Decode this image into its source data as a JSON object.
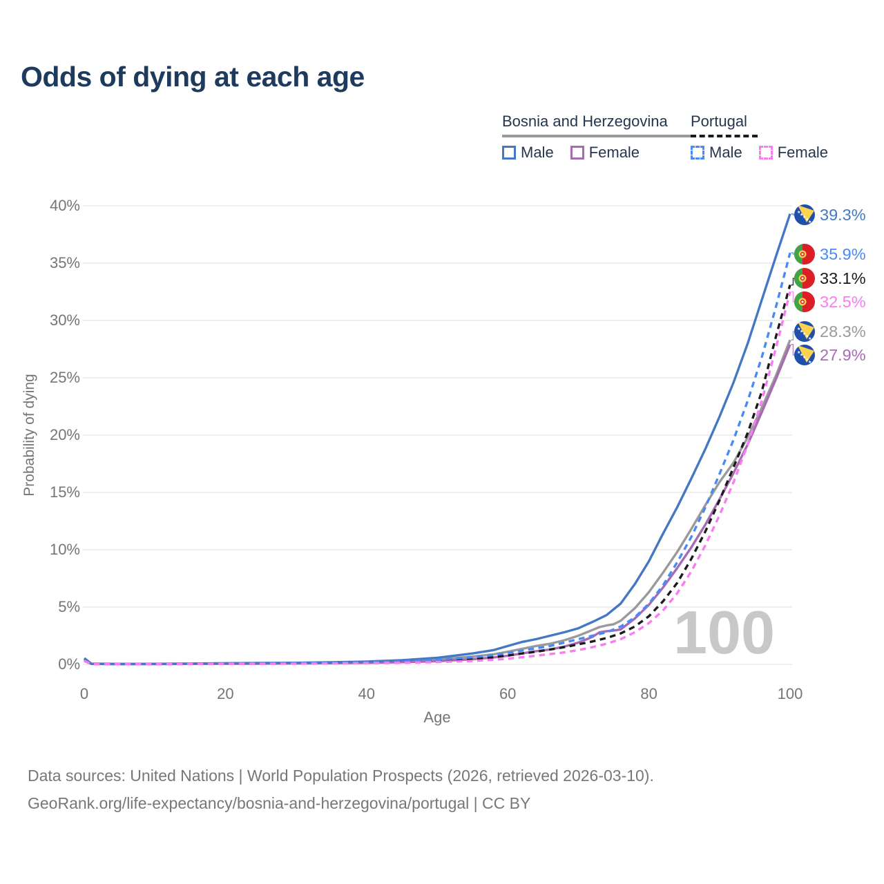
{
  "title": "Odds of dying at each age",
  "legend": {
    "groups": [
      {
        "country": "Bosnia and Herzegovina",
        "line_style": "solid",
        "line_color": "#9a9a9a",
        "items": [
          {
            "label": "Male",
            "color": "#4478c4",
            "dashed": false
          },
          {
            "label": "Female",
            "color": "#a76bb2",
            "dashed": false
          }
        ]
      },
      {
        "country": "Portugal",
        "line_style": "dashed",
        "line_color": "#1b1b1b",
        "items": [
          {
            "label": "Male",
            "color": "#4a8af4",
            "dashed": true
          },
          {
            "label": "Female",
            "color": "#f97cf1",
            "dashed": true
          }
        ]
      }
    ]
  },
  "chart_data": {
    "type": "line",
    "title": "Odds of dying at each age",
    "xlabel": "Age",
    "ylabel": "Probability of dying",
    "xlim": [
      0,
      100
    ],
    "ylim": [
      0,
      40
    ],
    "grid": "horizontal",
    "watermark": "100",
    "xticks": [
      {
        "label": "0",
        "value": 0
      },
      {
        "label": "20",
        "value": 20
      },
      {
        "label": "40",
        "value": 40
      },
      {
        "label": "60",
        "value": 60
      },
      {
        "label": "80",
        "value": 80
      },
      {
        "label": "100",
        "value": 100
      }
    ],
    "yticks": [
      {
        "label": "0%",
        "value": 0
      },
      {
        "label": "5%",
        "value": 5
      },
      {
        "label": "10%",
        "value": 10
      },
      {
        "label": "15%",
        "value": 15
      },
      {
        "label": "20%",
        "value": 20
      },
      {
        "label": "25%",
        "value": 25
      },
      {
        "label": "30%",
        "value": 30
      },
      {
        "label": "35%",
        "value": 35
      },
      {
        "label": "40%",
        "value": 40
      }
    ],
    "series": [
      {
        "name": "Bosnia and Herzegovina — Both sexes",
        "id": "bosnia-total",
        "country": "ba",
        "color": "#9a9a9a",
        "dashed": false,
        "end_value_pct": 28.3,
        "points": [
          [
            0,
            0.5
          ],
          [
            1,
            0.05
          ],
          [
            5,
            0.03
          ],
          [
            10,
            0.04
          ],
          [
            15,
            0.05
          ],
          [
            20,
            0.08
          ],
          [
            25,
            0.09
          ],
          [
            30,
            0.11
          ],
          [
            35,
            0.14
          ],
          [
            40,
            0.19
          ],
          [
            45,
            0.27
          ],
          [
            50,
            0.42
          ],
          [
            55,
            0.68
          ],
          [
            58,
            0.88
          ],
          [
            60,
            1.1
          ],
          [
            62,
            1.35
          ],
          [
            64,
            1.6
          ],
          [
            66,
            1.8
          ],
          [
            68,
            2.1
          ],
          [
            70,
            2.5
          ],
          [
            72,
            3.0
          ],
          [
            73,
            3.25
          ],
          [
            74,
            3.4
          ],
          [
            75,
            3.5
          ],
          [
            76,
            3.8
          ],
          [
            78,
            4.9
          ],
          [
            80,
            6.3
          ],
          [
            82,
            8.0
          ],
          [
            84,
            9.8
          ],
          [
            86,
            11.8
          ],
          [
            88,
            13.9
          ],
          [
            90,
            15.9
          ],
          [
            92,
            17.6
          ],
          [
            94,
            19.8
          ],
          [
            96,
            22.4
          ],
          [
            98,
            25.2
          ],
          [
            100,
            28.3
          ]
        ]
      },
      {
        "name": "Bosnia and Herzegovina — Female",
        "id": "bosnia-female",
        "country": "ba",
        "color": "#a76bb2",
        "dashed": false,
        "end_value_pct": 27.9,
        "points": [
          [
            0,
            0.45
          ],
          [
            1,
            0.04
          ],
          [
            5,
            0.02
          ],
          [
            10,
            0.03
          ],
          [
            15,
            0.04
          ],
          [
            20,
            0.05
          ],
          [
            25,
            0.06
          ],
          [
            30,
            0.08
          ],
          [
            35,
            0.1
          ],
          [
            40,
            0.13
          ],
          [
            45,
            0.19
          ],
          [
            50,
            0.28
          ],
          [
            55,
            0.45
          ],
          [
            58,
            0.6
          ],
          [
            60,
            0.75
          ],
          [
            62,
            0.95
          ],
          [
            64,
            1.15
          ],
          [
            66,
            1.3
          ],
          [
            68,
            1.55
          ],
          [
            70,
            1.9
          ],
          [
            72,
            2.4
          ],
          [
            73,
            2.8
          ],
          [
            74,
            2.9
          ],
          [
            75,
            2.95
          ],
          [
            76,
            3.05
          ],
          [
            78,
            4.0
          ],
          [
            80,
            5.2
          ],
          [
            82,
            6.7
          ],
          [
            84,
            8.4
          ],
          [
            86,
            10.2
          ],
          [
            88,
            12.2
          ],
          [
            90,
            14.4
          ],
          [
            92,
            16.7
          ],
          [
            94,
            19.2
          ],
          [
            96,
            22.0
          ],
          [
            98,
            24.9
          ],
          [
            100,
            27.9
          ]
        ]
      },
      {
        "name": "Bosnia and Herzegovina — Male",
        "id": "bosnia-male",
        "country": "ba",
        "color": "#4478c4",
        "dashed": false,
        "end_value_pct": 39.3,
        "points": [
          [
            0,
            0.55
          ],
          [
            1,
            0.06
          ],
          [
            5,
            0.04
          ],
          [
            10,
            0.05
          ],
          [
            15,
            0.07
          ],
          [
            20,
            0.1
          ],
          [
            25,
            0.12
          ],
          [
            30,
            0.14
          ],
          [
            35,
            0.18
          ],
          [
            40,
            0.25
          ],
          [
            45,
            0.36
          ],
          [
            50,
            0.58
          ],
          [
            55,
            0.95
          ],
          [
            58,
            1.25
          ],
          [
            60,
            1.6
          ],
          [
            62,
            1.95
          ],
          [
            64,
            2.2
          ],
          [
            66,
            2.5
          ],
          [
            68,
            2.8
          ],
          [
            70,
            3.15
          ],
          [
            72,
            3.7
          ],
          [
            74,
            4.3
          ],
          [
            76,
            5.3
          ],
          [
            78,
            7.0
          ],
          [
            80,
            9.0
          ],
          [
            82,
            11.4
          ],
          [
            84,
            13.7
          ],
          [
            86,
            16.2
          ],
          [
            88,
            18.8
          ],
          [
            90,
            21.6
          ],
          [
            92,
            24.6
          ],
          [
            94,
            28.0
          ],
          [
            96,
            31.8
          ],
          [
            98,
            35.6
          ],
          [
            100,
            39.3
          ]
        ]
      },
      {
        "name": "Portugal — Both sexes",
        "id": "portugal-total",
        "country": "pt",
        "color": "#1b1b1b",
        "dashed": true,
        "end_value_pct": 33.1,
        "points": [
          [
            0,
            0.3
          ],
          [
            1,
            0.03
          ],
          [
            5,
            0.02
          ],
          [
            10,
            0.02
          ],
          [
            15,
            0.04
          ],
          [
            20,
            0.06
          ],
          [
            25,
            0.07
          ],
          [
            30,
            0.09
          ],
          [
            35,
            0.11
          ],
          [
            40,
            0.15
          ],
          [
            45,
            0.21
          ],
          [
            50,
            0.31
          ],
          [
            55,
            0.48
          ],
          [
            58,
            0.63
          ],
          [
            60,
            0.78
          ],
          [
            62,
            0.95
          ],
          [
            64,
            1.1
          ],
          [
            66,
            1.3
          ],
          [
            68,
            1.5
          ],
          [
            70,
            1.75
          ],
          [
            72,
            2.0
          ],
          [
            74,
            2.3
          ],
          [
            76,
            2.7
          ],
          [
            78,
            3.3
          ],
          [
            80,
            4.2
          ],
          [
            82,
            5.5
          ],
          [
            84,
            7.1
          ],
          [
            86,
            9.2
          ],
          [
            88,
            11.6
          ],
          [
            90,
            14.3
          ],
          [
            92,
            17.2
          ],
          [
            94,
            20.2
          ],
          [
            96,
            23.8
          ],
          [
            98,
            28.6
          ],
          [
            100,
            33.1
          ]
        ]
      },
      {
        "name": "Portugal — Male",
        "id": "portugal-male",
        "country": "pt",
        "color": "#4a8af4",
        "dashed": true,
        "end_value_pct": 35.9,
        "points": [
          [
            0,
            0.35
          ],
          [
            1,
            0.03
          ],
          [
            5,
            0.02
          ],
          [
            10,
            0.03
          ],
          [
            15,
            0.05
          ],
          [
            20,
            0.08
          ],
          [
            25,
            0.1
          ],
          [
            30,
            0.11
          ],
          [
            35,
            0.14
          ],
          [
            40,
            0.18
          ],
          [
            45,
            0.26
          ],
          [
            50,
            0.4
          ],
          [
            55,
            0.62
          ],
          [
            58,
            0.82
          ],
          [
            60,
            1.0
          ],
          [
            62,
            1.2
          ],
          [
            64,
            1.4
          ],
          [
            66,
            1.6
          ],
          [
            68,
            1.9
          ],
          [
            70,
            2.2
          ],
          [
            72,
            2.5
          ],
          [
            74,
            2.8
          ],
          [
            76,
            3.3
          ],
          [
            78,
            4.1
          ],
          [
            80,
            5.3
          ],
          [
            82,
            6.9
          ],
          [
            84,
            8.9
          ],
          [
            86,
            11.1
          ],
          [
            88,
            13.7
          ],
          [
            90,
            16.6
          ],
          [
            92,
            19.6
          ],
          [
            94,
            23.0
          ],
          [
            96,
            26.8
          ],
          [
            98,
            31.2
          ],
          [
            100,
            35.9
          ]
        ]
      },
      {
        "name": "Portugal — Female",
        "id": "portugal-female",
        "country": "pt",
        "color": "#f97cf1",
        "dashed": true,
        "end_value_pct": 32.5,
        "points": [
          [
            0,
            0.3
          ],
          [
            1,
            0.02
          ],
          [
            5,
            0.02
          ],
          [
            10,
            0.02
          ],
          [
            15,
            0.03
          ],
          [
            20,
            0.04
          ],
          [
            25,
            0.05
          ],
          [
            30,
            0.06
          ],
          [
            35,
            0.08
          ],
          [
            40,
            0.1
          ],
          [
            45,
            0.14
          ],
          [
            50,
            0.2
          ],
          [
            55,
            0.3
          ],
          [
            58,
            0.4
          ],
          [
            60,
            0.5
          ],
          [
            62,
            0.62
          ],
          [
            64,
            0.75
          ],
          [
            66,
            0.9
          ],
          [
            68,
            1.05
          ],
          [
            70,
            1.25
          ],
          [
            72,
            1.5
          ],
          [
            74,
            1.8
          ],
          [
            76,
            2.2
          ],
          [
            78,
            2.8
          ],
          [
            80,
            3.6
          ],
          [
            82,
            4.7
          ],
          [
            84,
            6.2
          ],
          [
            86,
            8.1
          ],
          [
            88,
            10.4
          ],
          [
            90,
            13.0
          ],
          [
            92,
            15.9
          ],
          [
            94,
            19.2
          ],
          [
            96,
            23.0
          ],
          [
            98,
            27.6
          ],
          [
            100,
            32.5
          ]
        ]
      }
    ],
    "end_labels": [
      {
        "value": "39.3%",
        "series": "bosnia-male",
        "flag": "ba",
        "color": "#4478c4",
        "pct": 39.3
      },
      {
        "value": "35.9%",
        "series": "portugal-male",
        "flag": "pt",
        "color": "#4a8af4",
        "pct": 35.9
      },
      {
        "value": "33.1%",
        "series": "portugal-total",
        "flag": "pt",
        "color": "#1b1b1b",
        "pct": 33.1
      },
      {
        "value": "32.5%",
        "series": "portugal-female",
        "flag": "pt",
        "color": "#f97cf1",
        "pct": 32.5
      },
      {
        "value": "28.3%",
        "series": "bosnia-total",
        "flag": "ba",
        "color": "#9a9a9a",
        "pct": 28.3
      },
      {
        "value": "27.9%",
        "series": "bosnia-female",
        "flag": "ba",
        "color": "#a76bb2",
        "pct": 27.9
      }
    ]
  },
  "footer": {
    "line1": "Data sources: United Nations | World Population Prospects (2026, retrieved 2026-03-10).",
    "line2": "GeoRank.org/life-expectancy/bosnia-and-herzegovina/portugal | CC BY"
  },
  "colors": {
    "title_text": "#1e3a5c",
    "axis_text": "#757575",
    "grid_line": "#e8e8e8",
    "watermark_text": "#c8c8c8",
    "footer_text": "#777777",
    "flag_ba_blue": "#1f4faa",
    "flag_ba_yellow": "#fcd34d",
    "flag_pt_green": "#3fa449",
    "flag_pt_red": "#dc1f26",
    "flag_pt_yellow": "#fcd24c"
  }
}
